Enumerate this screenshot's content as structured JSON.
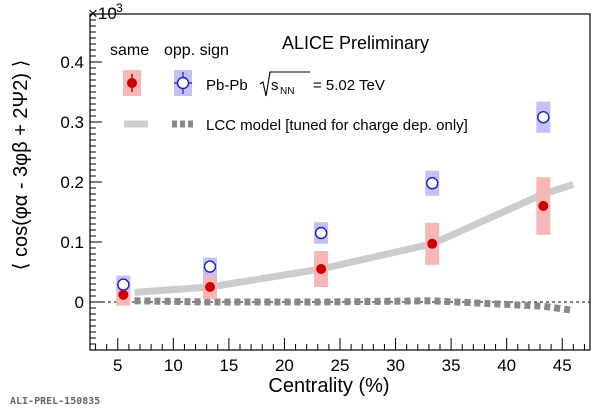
{
  "figure_id": "ALI-PREL-150835",
  "chart_data": {
    "type": "scatter",
    "title": "ALICE Preliminary",
    "xlabel": "Centrality (%)",
    "ylabel": "⟨ cos(φα - 3φβ + 2Ψ2) ⟩",
    "yscale_label": "×10",
    "yscale_exponent": "-3",
    "xlim": [
      2.5,
      47.5
    ],
    "ylim": [
      -0.08,
      0.48
    ],
    "xticks": [
      5,
      10,
      15,
      20,
      25,
      30,
      35,
      40,
      45
    ],
    "yticks": [
      0,
      0.1,
      0.2,
      0.3,
      0.4
    ],
    "ytick_labels": [
      "0",
      "0.1",
      "0.2",
      "0.3",
      "0.4"
    ],
    "legend": {
      "header_same": "same",
      "header_opp": "opp. sign",
      "data_label": "Pb-Pb",
      "energy_label": "= 5.02 TeV",
      "model_label": "LCC model [tuned for charge dep. only]"
    },
    "colors": {
      "same": "#cc0000",
      "same_box": "#f7b7b7",
      "opp": "#1a1acc",
      "opp_box": "#c2c2f5",
      "model": "#cccccc",
      "model_opp": "#888888"
    },
    "series": [
      {
        "name": "same",
        "x": [
          5.5,
          13.3,
          23.3,
          33.3,
          43.3
        ],
        "y": [
          0.012,
          0.025,
          0.055,
          0.097,
          0.16
        ],
        "sys_low": [
          -0.006,
          0.005,
          0.025,
          0.062,
          0.112
        ],
        "sys_high": [
          0.03,
          0.045,
          0.085,
          0.132,
          0.208
        ]
      },
      {
        "name": "opp. sign",
        "x": [
          5.5,
          13.3,
          23.3,
          33.3,
          43.3
        ],
        "y": [
          0.029,
          0.059,
          0.115,
          0.198,
          0.308
        ],
        "sys_low": [
          0.014,
          0.044,
          0.097,
          0.177,
          0.282
        ],
        "sys_high": [
          0.044,
          0.074,
          0.133,
          0.219,
          0.334
        ]
      },
      {
        "name": "LCC model same",
        "x": [
          6.5,
          13.3,
          23.3,
          33.3,
          43.3,
          46
        ],
        "y": [
          0.016,
          0.025,
          0.055,
          0.097,
          0.18,
          0.196
        ]
      },
      {
        "name": "LCC model opp. sign",
        "x": [
          6.5,
          13.3,
          23.3,
          33.3,
          43.3,
          46
        ],
        "y": [
          0.002,
          0.0,
          0.0,
          0.002,
          -0.007,
          -0.014
        ]
      }
    ]
  }
}
